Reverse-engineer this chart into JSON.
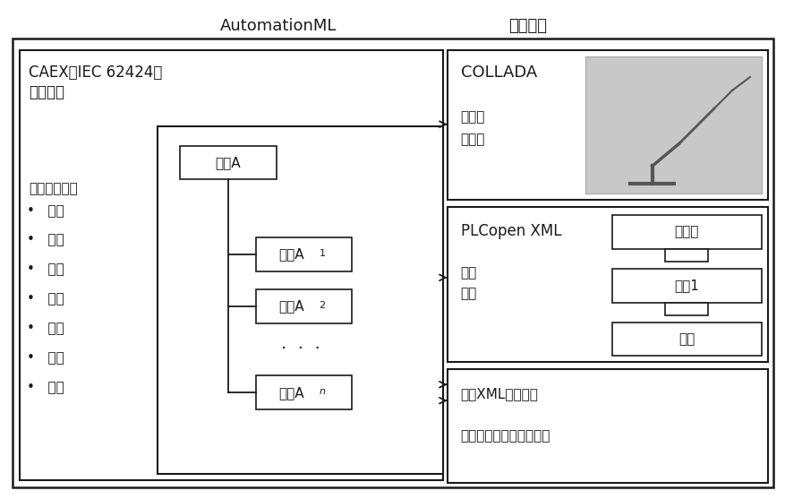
{
  "title_automationml": "AutomationML",
  "title_toplayer": "顶层格式",
  "caex_label1": "CAEX（IEC 62424）",
  "caex_label2": "顶层格式",
  "factory_title": "工厂拓扑信息",
  "factory_items": [
    "工厂",
    "单元",
    "组件",
    "特性",
    "接口",
    "关系",
    "引用"
  ],
  "obj_a": "对象A",
  "obj_a1_base": "对象A",
  "obj_a1_sub": "1",
  "obj_a2_base": "对象A",
  "obj_a2_sub": "2",
  "obj_an_base": "对象A",
  "obj_an_sub": "n",
  "collada_title": "COLLADA",
  "collada_item1": "几何学",
  "collada_item2": "运动学",
  "plcopen_title": "PLCopen XML",
  "plcopen_item1": "行为",
  "plcopen_item2": "序列",
  "plc_box1": "初始化",
  "plc_box2": "步骤1",
  "plc_box3": "结束",
  "more_xml_title": "更多XML标准格式",
  "more_xml_content": "工程信息更多方面的内容",
  "bg_color": "#ffffff",
  "fig_width": 8.78,
  "fig_height": 5.57,
  "dpi": 100
}
